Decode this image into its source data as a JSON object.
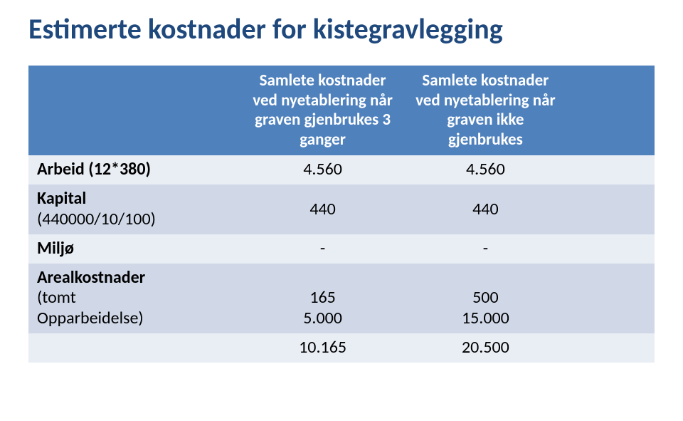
{
  "title": "Estimerte kostnader for kistegravlegging",
  "colors": {
    "title": "#1f497d",
    "header_bg": "#4f81bd",
    "header_text": "#ffffff",
    "band_a": "#e9edf4",
    "band_b": "#d0d8e8",
    "body_text": "#000000",
    "background": "#ffffff"
  },
  "typography": {
    "title_fontsize": 40,
    "header_fontsize": 23,
    "body_fontsize": 24,
    "font_family": "Calibri"
  },
  "table": {
    "columns": [
      {
        "label": "",
        "width_pct": 34,
        "align": "left"
      },
      {
        "label": "Samlete kostnader ved nyetablering når graven gjenbrukes 3 ganger",
        "width_pct": 26,
        "align": "center"
      },
      {
        "label": "Samlete kostnader ved nyetablering når graven ikke gjenbrukes",
        "width_pct": 26,
        "align": "center"
      },
      {
        "label": "",
        "width_pct": 14,
        "align": "center"
      }
    ],
    "rows": [
      {
        "band": "a",
        "label": "Arbeid (12*380)",
        "sub": "",
        "c1": "4.560",
        "c2": "4.560",
        "c3": ""
      },
      {
        "band": "b",
        "label": "Kapital",
        "sub": "(440000/10/100)",
        "c1": "440",
        "c2": "440",
        "c3": ""
      },
      {
        "band": "a",
        "label": "Miljø",
        "sub": "",
        "c1": "-",
        "c2": "-",
        "c3": ""
      },
      {
        "band": "b",
        "label": "Arealkostnader",
        "sub": "(tomt\nOpparbeidelse)",
        "c1": "\n165\n5.000",
        "c2": "\n500\n15.000",
        "c3": ""
      },
      {
        "band": "a",
        "label": "",
        "sub": "",
        "c1": "10.165",
        "c2": "20.500",
        "c3": ""
      }
    ]
  }
}
